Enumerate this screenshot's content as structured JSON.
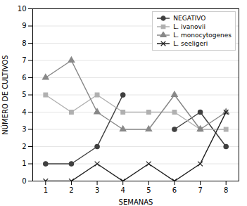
{
  "chart_data": {
    "type": "line",
    "x": [
      1,
      2,
      3,
      4,
      5,
      6,
      7,
      8
    ],
    "series": [
      {
        "name": "NEGATIVO",
        "color": "#404040",
        "marker": "circle",
        "values": [
          1,
          1,
          2,
          5,
          null,
          3,
          4,
          2
        ]
      },
      {
        "name": "L. ivanovii",
        "color": "#b0b0b0",
        "marker": "square",
        "values": [
          5,
          4,
          5,
          4,
          4,
          4,
          3,
          3
        ]
      },
      {
        "name": "L. monocytogenes",
        "color": "#888888",
        "marker": "triangle",
        "values": [
          6,
          7,
          4,
          3,
          3,
          5,
          3,
          4
        ]
      },
      {
        "name": "L. seeligeri",
        "color": "#202020",
        "marker": "times",
        "values": [
          0,
          0,
          1,
          0,
          1,
          0,
          1,
          4
        ]
      }
    ],
    "xlabel": "SEMANAS",
    "ylabel": "NÚMERO DE CULTIVOS",
    "xlim": [
      0.5,
      8.5
    ],
    "ylim": [
      0,
      10
    ],
    "xticks": [
      1,
      2,
      3,
      4,
      5,
      6,
      7,
      8
    ],
    "yticks": [
      0,
      1,
      2,
      3,
      4,
      5,
      6,
      7,
      8,
      9,
      10
    ],
    "grid": true,
    "legend": "upper right"
  }
}
